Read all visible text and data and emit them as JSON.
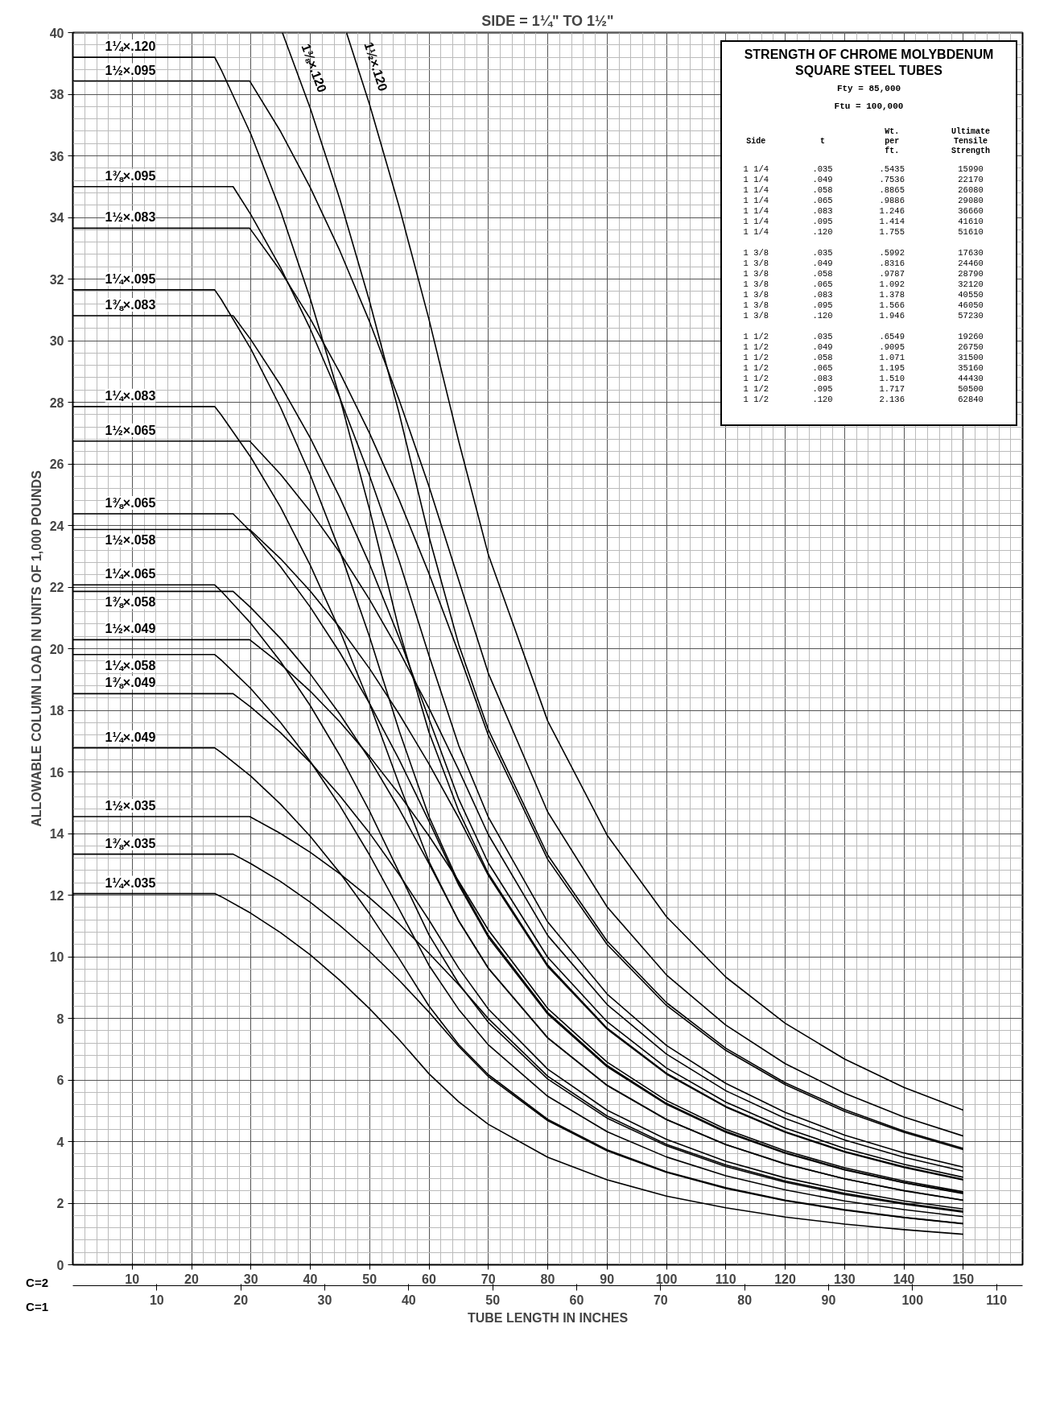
{
  "chart_data": [
    {
      "type": "line",
      "title": "SIDE = 1¼\" TO 1½\"",
      "xlabel": "TUBE LENGTH IN INCHES",
      "ylabel": "ALLOWABLE COLUMN LOAD IN UNITS OF 1,000 POUNDS",
      "annotations": [
        "C=2",
        "C=1"
      ],
      "xlim": [
        0,
        160
      ],
      "xticks": [
        10,
        20,
        30,
        40,
        50,
        60,
        70,
        80,
        90,
        100,
        110,
        120,
        130,
        140,
        150
      ],
      "x2lim": [
        0,
        113.1
      ],
      "x2ticks": [
        10,
        20,
        30,
        40,
        50,
        60,
        70,
        80,
        90,
        100,
        110
      ],
      "ylim": [
        0,
        40
      ],
      "yticks": [
        0,
        2,
        4,
        6,
        8,
        10,
        12,
        14,
        16,
        18,
        20,
        22,
        24,
        26,
        28,
        30,
        32,
        34,
        36,
        38,
        40
      ],
      "grid": true,
      "series": [
        {
          "name": "1¼×.035",
          "color": "#000000",
          "x": [
            0,
            23.9,
            25,
            30,
            35,
            40,
            45,
            50,
            55,
            60,
            65,
            70,
            80,
            90,
            100,
            110,
            120,
            130,
            140,
            150
          ],
          "values": [
            12.05,
            12.05,
            11.95,
            11.41,
            10.78,
            10.06,
            9.23,
            8.31,
            7.3,
            6.2,
            5.29,
            4.56,
            3.49,
            2.76,
            2.23,
            1.85,
            1.55,
            1.32,
            1.14,
            0.99
          ]
        },
        {
          "name": "1¼×.049",
          "color": "#000000",
          "x": [
            0,
            23.9,
            25,
            30,
            35,
            40,
            45,
            50,
            55,
            60,
            65,
            70,
            80,
            90,
            100,
            110,
            120,
            130,
            140,
            150
          ],
          "values": [
            16.78,
            16.78,
            16.63,
            15.86,
            14.95,
            13.91,
            12.72,
            11.39,
            9.93,
            8.4,
            7.15,
            6.17,
            4.72,
            3.73,
            3.02,
            2.5,
            2.1,
            1.79,
            1.54,
            1.34
          ]
        },
        {
          "name": "1¼×.058",
          "color": "#000000",
          "x": [
            0,
            23.9,
            25,
            30,
            35,
            40,
            45,
            50,
            55,
            60,
            65,
            70,
            80,
            90,
            100,
            110,
            120,
            130,
            140,
            150
          ],
          "values": [
            19.81,
            19.81,
            19.63,
            18.7,
            17.6,
            16.34,
            14.9,
            13.3,
            11.53,
            9.72,
            8.29,
            7.14,
            5.47,
            4.32,
            3.5,
            2.89,
            2.43,
            2.07,
            1.79,
            1.56
          ]
        },
        {
          "name": "1¼×.065",
          "color": "#000000",
          "x": [
            0,
            23.9,
            25,
            30,
            35,
            40,
            45,
            50,
            55,
            60,
            65,
            70,
            80,
            90,
            100,
            110,
            120,
            130,
            140,
            150
          ],
          "values": [
            22.07,
            22.07,
            21.87,
            20.82,
            19.58,
            18.15,
            16.53,
            14.72,
            12.72,
            10.71,
            9.13,
            7.87,
            6.03,
            4.76,
            3.86,
            3.19,
            2.68,
            2.28,
            1.97,
            1.71
          ]
        },
        {
          "name": "1¼×.083",
          "color": "#000000",
          "x": [
            0,
            23.9,
            25,
            30,
            35,
            40,
            45,
            50,
            55,
            60,
            65,
            70,
            80,
            90,
            100,
            110,
            120,
            130,
            140,
            150
          ],
          "values": [
            27.86,
            27.86,
            27.59,
            26.21,
            24.59,
            22.71,
            20.58,
            18.21,
            15.58,
            13.09,
            11.16,
            9.62,
            7.36,
            5.82,
            4.71,
            3.9,
            3.27,
            2.79,
            2.4,
            2.09
          ]
        },
        {
          "name": "1¼×.095",
          "color": "#000000",
          "x": [
            0,
            23.9,
            25,
            30,
            35,
            40,
            45,
            50,
            55,
            60,
            65,
            70,
            80,
            90,
            100,
            110,
            120,
            130,
            140,
            150
          ],
          "values": [
            31.65,
            31.65,
            31.34,
            29.73,
            27.83,
            25.64,
            23.16,
            20.38,
            17.32,
            14.55,
            12.4,
            10.69,
            8.19,
            6.47,
            5.24,
            4.33,
            3.64,
            3.1,
            2.67,
            2.33
          ]
        },
        {
          "name": "1¼×.120",
          "color": "#000000",
          "x": [
            0,
            23.9,
            25,
            30,
            35,
            40,
            45,
            50,
            55,
            60,
            65,
            70,
            80,
            90,
            100,
            110,
            120,
            130,
            140,
            150
          ],
          "values": [
            39.2,
            39.2,
            38.79,
            36.7,
            34.22,
            31.36,
            28.13,
            24.51,
            20.58,
            17.29,
            14.73,
            12.7,
            9.73,
            7.68,
            6.22,
            5.14,
            4.32,
            3.68,
            3.18,
            2.77
          ]
        },
        {
          "name": "1⅜×.035",
          "color": "#000000",
          "x": [
            0,
            27.0,
            30,
            35,
            40,
            45,
            50,
            55,
            60,
            65,
            70,
            80,
            90,
            100,
            110,
            120,
            130,
            140,
            150
          ],
          "values": [
            13.33,
            13.33,
            13.02,
            12.44,
            11.77,
            11.01,
            10.17,
            9.23,
            8.2,
            7.09,
            6.11,
            4.68,
            3.7,
            3.0,
            2.48,
            2.08,
            1.77,
            1.53,
            1.33
          ]
        },
        {
          "name": "1⅜×.049",
          "color": "#000000",
          "x": [
            0,
            27.0,
            30,
            35,
            40,
            45,
            50,
            55,
            60,
            65,
            70,
            80,
            90,
            100,
            110,
            120,
            130,
            140,
            150
          ],
          "values": [
            18.54,
            18.54,
            18.1,
            17.27,
            16.31,
            15.22,
            14.01,
            12.66,
            11.19,
            9.63,
            8.3,
            6.35,
            5.02,
            4.07,
            3.36,
            2.82,
            2.41,
            2.07,
            1.81
          ]
        },
        {
          "name": "1⅜×.058",
          "color": "#000000",
          "x": [
            0,
            27.0,
            30,
            35,
            40,
            45,
            50,
            55,
            60,
            65,
            70,
            80,
            90,
            100,
            110,
            120,
            130,
            140,
            150
          ],
          "values": [
            21.86,
            21.86,
            21.33,
            20.33,
            19.18,
            17.87,
            16.41,
            14.79,
            13.02,
            11.17,
            9.63,
            7.37,
            5.83,
            4.72,
            3.9,
            3.28,
            2.79,
            2.41,
            2.1
          ]
        },
        {
          "name": "1⅜×.065",
          "color": "#000000",
          "x": [
            0,
            27.0,
            30,
            35,
            40,
            45,
            50,
            55,
            60,
            65,
            70,
            80,
            90,
            100,
            110,
            120,
            130,
            140,
            150
          ],
          "values": [
            24.38,
            24.38,
            23.79,
            22.66,
            21.35,
            19.87,
            18.22,
            16.39,
            14.4,
            12.33,
            10.63,
            8.14,
            6.43,
            5.21,
            4.3,
            3.62,
            3.08,
            2.66,
            2.31
          ]
        },
        {
          "name": "1⅜×.083",
          "color": "#000000",
          "x": [
            0,
            27.0,
            30,
            35,
            40,
            45,
            50,
            55,
            60,
            65,
            70,
            80,
            90,
            100,
            110,
            120,
            130,
            140,
            150
          ],
          "values": [
            30.81,
            30.81,
            30.03,
            28.55,
            26.84,
            24.9,
            22.74,
            20.34,
            17.72,
            15.12,
            13.04,
            9.98,
            7.89,
            6.39,
            5.28,
            4.44,
            3.78,
            3.26,
            2.84
          ]
        },
        {
          "name": "1⅜×.095",
          "color": "#000000",
          "x": [
            0,
            27.0,
            30,
            35,
            40,
            45,
            50,
            55,
            60,
            65,
            70,
            80,
            90,
            100,
            110,
            120,
            130,
            140,
            150
          ],
          "values": [
            35.0,
            35.0,
            34.09,
            32.37,
            30.38,
            28.13,
            25.61,
            22.83,
            19.78,
            16.86,
            14.53,
            11.13,
            8.79,
            7.12,
            5.89,
            4.95,
            4.21,
            3.63,
            3.17
          ]
        },
        {
          "name": "1⅜×.120",
          "color": "#000000",
          "x": [
            35.3,
            40,
            45,
            50,
            55,
            60,
            65,
            70,
            80,
            90,
            100,
            110,
            120,
            130,
            140,
            150
          ],
          "values": [
            40.0,
            37.54,
            34.58,
            31.27,
            27.62,
            23.64,
            20.14,
            17.37,
            13.3,
            10.51,
            8.51,
            7.03,
            5.91,
            5.04,
            4.34,
            3.78
          ]
        },
        {
          "name": "1½×.035",
          "color": "#000000",
          "x": [
            0,
            29.8,
            35,
            40,
            45,
            50,
            55,
            60,
            65,
            70,
            80,
            90,
            100,
            110,
            120,
            130,
            140,
            150
          ],
          "values": [
            14.55,
            14.55,
            14.0,
            13.39,
            12.69,
            11.91,
            11.06,
            10.11,
            9.09,
            7.99,
            6.12,
            4.83,
            3.91,
            3.24,
            2.72,
            2.32,
            2.0,
            1.74
          ]
        },
        {
          "name": "1½×.049",
          "color": "#000000",
          "x": [
            0,
            29.8,
            35,
            40,
            45,
            50,
            55,
            60,
            65,
            70,
            80,
            90,
            100,
            110,
            120,
            130,
            140,
            150
          ],
          "values": [
            20.29,
            20.29,
            19.5,
            18.62,
            17.62,
            16.5,
            15.27,
            13.92,
            12.45,
            10.87,
            8.32,
            6.58,
            5.33,
            4.4,
            3.7,
            3.15,
            2.72,
            2.37
          ]
        },
        {
          "name": "1½×.058",
          "color": "#000000",
          "x": [
            0,
            29.8,
            35,
            40,
            45,
            50,
            55,
            60,
            65,
            70,
            80,
            90,
            100,
            110,
            120,
            130,
            140,
            150
          ],
          "values": [
            23.87,
            23.87,
            22.92,
            21.87,
            20.68,
            19.35,
            17.87,
            16.26,
            14.51,
            12.64,
            9.68,
            7.65,
            6.19,
            5.12,
            4.3,
            3.66,
            3.16,
            2.75
          ]
        },
        {
          "name": "1½×.065",
          "color": "#000000",
          "x": [
            0,
            29.8,
            35,
            40,
            45,
            50,
            55,
            60,
            65,
            70,
            80,
            90,
            100,
            110,
            120,
            130,
            140,
            150
          ],
          "values": [
            26.74,
            26.74,
            25.66,
            24.46,
            23.11,
            21.59,
            19.91,
            18.07,
            16.07,
            13.96,
            10.69,
            8.45,
            6.84,
            5.65,
            4.75,
            4.05,
            3.49,
            3.04
          ]
        },
        {
          "name": "1½×.083",
          "color": "#000000",
          "x": [
            0,
            29.8,
            35,
            40,
            45,
            50,
            55,
            60,
            65,
            70,
            80,
            90,
            100,
            110,
            120,
            130,
            140,
            150
          ],
          "values": [
            33.65,
            33.65,
            32.26,
            30.71,
            28.95,
            26.99,
            24.82,
            22.44,
            19.86,
            17.19,
            13.16,
            10.4,
            8.42,
            6.96,
            5.85,
            4.98,
            4.3,
            3.74
          ]
        },
        {
          "name": "1½×.095",
          "color": "#000000",
          "x": [
            0,
            29.8,
            35,
            40,
            45,
            50,
            55,
            60,
            65,
            70,
            80,
            90,
            100,
            110,
            120,
            130,
            140,
            150
          ],
          "values": [
            38.43,
            38.43,
            36.79,
            34.97,
            32.91,
            30.61,
            28.06,
            25.27,
            22.23,
            19.2,
            14.7,
            11.62,
            9.41,
            7.78,
            6.53,
            5.57,
            4.8,
            4.18
          ]
        },
        {
          "name": "1½×.120",
          "color": "#000000",
          "x": [
            46.1,
            50,
            55,
            60,
            65,
            70,
            80,
            90,
            100,
            110,
            120,
            130,
            140,
            150
          ],
          "values": [
            40.0,
            37.66,
            34.33,
            30.69,
            26.74,
            23.05,
            17.65,
            13.95,
            11.3,
            9.34,
            7.84,
            6.68,
            5.76,
            5.02
          ]
        }
      ]
    },
    {
      "type": "other",
      "title": "STRENGTH OF CHROME MOLYBDENUM SQUARE STEEL TUBES",
      "annotations": [
        "Fty = 85,000",
        "Ftu = 100,000"
      ],
      "categories": [
        "Side",
        "t",
        "Wt. per ft.",
        "Ultimate Tensile Strength"
      ],
      "cell_labels": [
        [
          "1 1/4",
          ".035",
          ".5435",
          "15990"
        ],
        [
          "1 1/4",
          ".049",
          ".7536",
          "22170"
        ],
        [
          "1 1/4",
          ".058",
          ".8865",
          "26080"
        ],
        [
          "1 1/4",
          ".065",
          ".9886",
          "29080"
        ],
        [
          "1 1/4",
          ".083",
          "1.246",
          "36660"
        ],
        [
          "1 1/4",
          ".095",
          "1.414",
          "41610"
        ],
        [
          "1 1/4",
          ".120",
          "1.755",
          "51610"
        ],
        [
          "1 3/8",
          ".035",
          ".5992",
          "17630"
        ],
        [
          "1 3/8",
          ".049",
          ".8316",
          "24460"
        ],
        [
          "1 3/8",
          ".058",
          ".9787",
          "28790"
        ],
        [
          "1 3/8",
          ".065",
          "1.092",
          "32120"
        ],
        [
          "1 3/8",
          ".083",
          "1.378",
          "40550"
        ],
        [
          "1 3/8",
          ".095",
          "1.566",
          "46050"
        ],
        [
          "1 3/8",
          ".120",
          "1.946",
          "57230"
        ],
        [
          "1 1/2",
          ".035",
          ".6549",
          "19260"
        ],
        [
          "1 1/2",
          ".049",
          ".9095",
          "26750"
        ],
        [
          "1 1/2",
          ".058",
          "1.071",
          "31500"
        ],
        [
          "1 1/2",
          ".065",
          "1.195",
          "35160"
        ],
        [
          "1 1/2",
          ".083",
          "1.510",
          "44430"
        ],
        [
          "1 1/2",
          ".095",
          "1.717",
          "50500"
        ],
        [
          "1 1/2",
          ".120",
          "2.136",
          "62840"
        ]
      ]
    }
  ]
}
